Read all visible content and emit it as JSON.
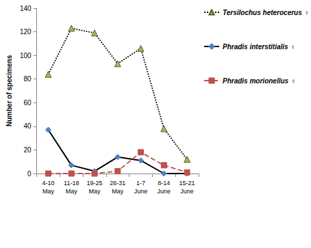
{
  "chart_data": {
    "type": "line",
    "y_label": "Number of specimens",
    "categories": [
      "4-10 May",
      "11-18 May",
      "19-25 May",
      "26-31 May",
      "1-7 June",
      "8-14 June",
      "15-21 June"
    ],
    "series": [
      {
        "name": "Tersilochus heterocerus ♀",
        "color": "#9bbb59",
        "marker": "triangle",
        "line_style": "dotted",
        "values": [
          84,
          123,
          119,
          93,
          106,
          38,
          12
        ]
      },
      {
        "name": "Phradis interstitialis ♀",
        "color": "#4f81bd",
        "marker": "diamond",
        "line_style": "solid",
        "values": [
          37,
          7,
          2,
          14,
          11,
          0,
          0
        ]
      },
      {
        "name": "Phradis morionellus ♀",
        "color": "#c0504d",
        "marker": "square",
        "line_style": "dashed",
        "values": [
          0,
          0,
          0,
          2,
          18,
          7,
          1
        ]
      }
    ],
    "ylim": [
      0,
      140
    ],
    "yticks": [
      0,
      20,
      40,
      60,
      80,
      100,
      120,
      140
    ],
    "grid": false,
    "legend": "right"
  }
}
